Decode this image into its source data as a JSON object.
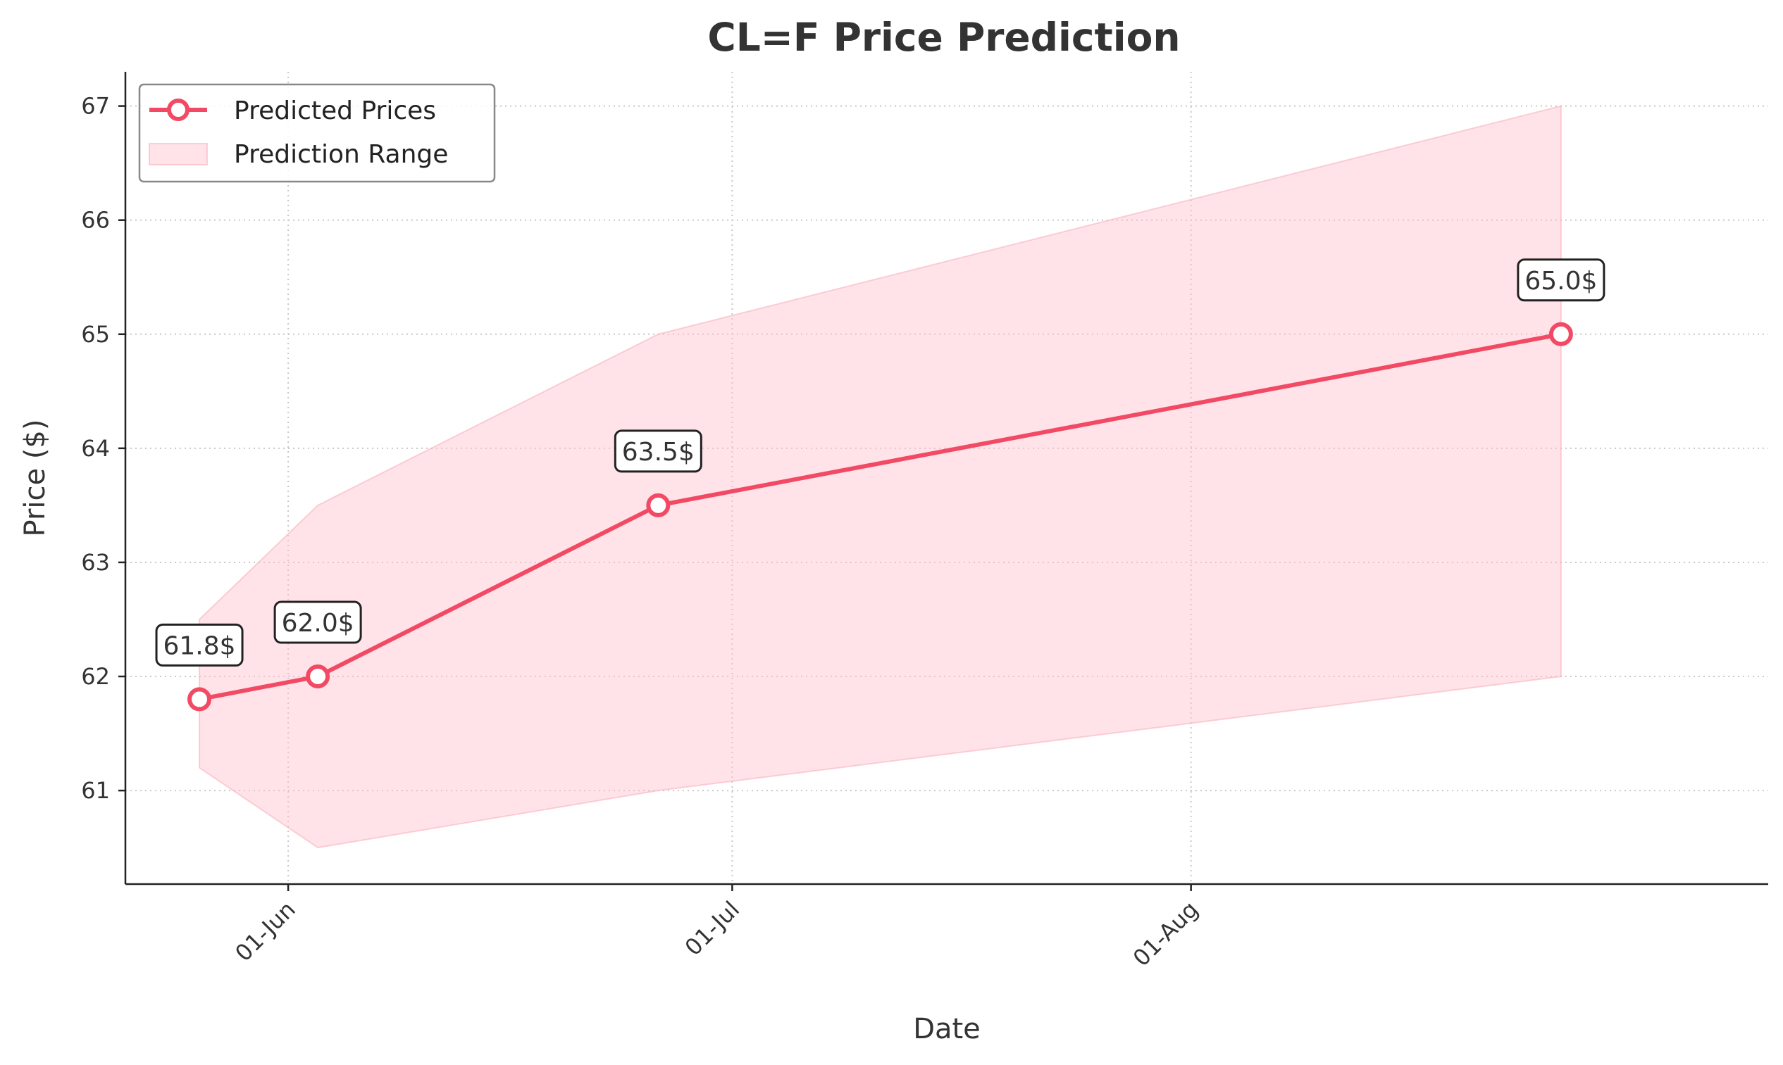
{
  "chart_data": {
    "type": "line",
    "title": "CL=F Price Prediction",
    "xlabel": "Date",
    "ylabel": "Price ($)",
    "x_ticks": [
      {
        "date": "2025-06-01",
        "label": "01-Jun"
      },
      {
        "date": "2025-07-01",
        "label": "01-Jul"
      },
      {
        "date": "2025-08-01",
        "label": "01-Aug"
      }
    ],
    "y_ticks": [
      61,
      62,
      63,
      64,
      65,
      66,
      67
    ],
    "xlim": [
      "2025-05-21",
      "2025-09-09"
    ],
    "ylim": [
      60.18,
      67.3
    ],
    "grid": true,
    "legend_position": "top-left",
    "series": [
      {
        "name": "Predicted Prices",
        "color": "#f24a64",
        "points": [
          {
            "x": "2025-05-26",
            "y": 61.8,
            "label": "61.8$"
          },
          {
            "x": "2025-06-03",
            "y": 62.0,
            "label": "62.0$"
          },
          {
            "x": "2025-06-26",
            "y": 63.5,
            "label": "63.5$"
          },
          {
            "x": "2025-08-26",
            "y": 65.0,
            "label": "65.0$"
          }
        ]
      }
    ],
    "range": {
      "name": "Prediction Range",
      "color": "#ffc0cb",
      "points": [
        {
          "x": "2025-05-26",
          "low": 61.2,
          "high": 62.5
        },
        {
          "x": "2025-06-03",
          "low": 60.5,
          "high": 63.5
        },
        {
          "x": "2025-06-26",
          "low": 61.0,
          "high": 65.0
        },
        {
          "x": "2025-08-26",
          "low": 62.0,
          "high": 67.0
        }
      ]
    }
  }
}
